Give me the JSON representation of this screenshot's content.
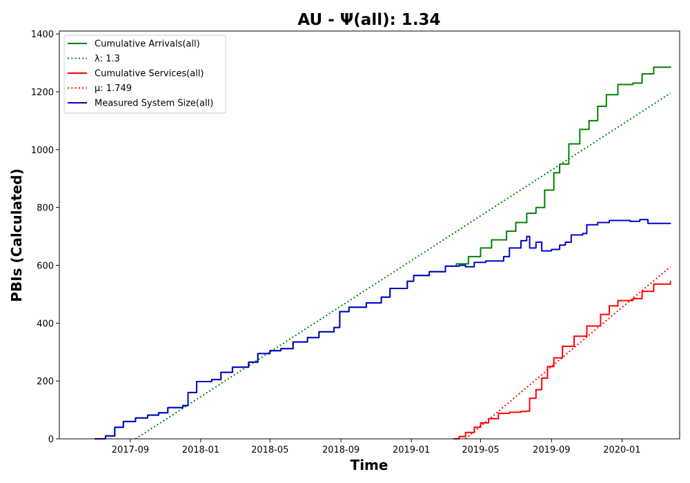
{
  "chart_data": {
    "type": "line",
    "title": "AU -  Ψ(all): 1.34",
    "xlabel": "Time",
    "ylabel": "PBIs (Calculated)",
    "x_type": "date",
    "xlim": [
      "2017-05-01",
      "2020-04-10"
    ],
    "ylim": [
      0,
      1410
    ],
    "x_ticks": [
      "2017-09",
      "2018-01",
      "2018-05",
      "2018-09",
      "2019-01",
      "2019-05",
      "2019-09",
      "2020-01"
    ],
    "y_ticks": [
      0,
      200,
      400,
      600,
      800,
      1000,
      1200,
      1400
    ],
    "grid": false,
    "legend_position": "top-left",
    "series": [
      {
        "name": "Cumulative Arrivals(all)",
        "color": "#008000",
        "style": "solid",
        "points": [
          [
            "2017-07-01",
            0
          ],
          [
            "2017-07-20",
            10
          ],
          [
            "2017-08-05",
            40
          ],
          [
            "2017-08-20",
            60
          ],
          [
            "2017-09-10",
            72
          ],
          [
            "2017-10-01",
            82
          ],
          [
            "2017-10-20",
            90
          ],
          [
            "2017-11-05",
            108
          ],
          [
            "2017-12-01",
            115
          ],
          [
            "2017-12-10",
            160
          ],
          [
            "2017-12-25",
            198
          ],
          [
            "2018-01-20",
            205
          ],
          [
            "2018-02-05",
            230
          ],
          [
            "2018-02-25",
            248
          ],
          [
            "2018-03-25",
            265
          ],
          [
            "2018-04-10",
            295
          ],
          [
            "2018-05-01",
            305
          ],
          [
            "2018-05-20",
            312
          ],
          [
            "2018-06-10",
            335
          ],
          [
            "2018-07-05",
            350
          ],
          [
            "2018-07-25",
            370
          ],
          [
            "2018-08-20",
            385
          ],
          [
            "2018-08-30",
            440
          ],
          [
            "2018-09-15",
            455
          ],
          [
            "2018-10-15",
            470
          ],
          [
            "2018-11-10",
            490
          ],
          [
            "2018-11-25",
            520
          ],
          [
            "2018-12-25",
            545
          ],
          [
            "2019-01-05",
            565
          ],
          [
            "2019-02-01",
            578
          ],
          [
            "2019-03-01",
            597
          ],
          [
            "2019-03-20",
            605
          ],
          [
            "2019-04-10",
            630
          ],
          [
            "2019-05-01",
            660
          ],
          [
            "2019-05-20",
            688
          ],
          [
            "2019-06-15",
            718
          ],
          [
            "2019-07-01",
            748
          ],
          [
            "2019-07-20",
            780
          ],
          [
            "2019-08-05",
            800
          ],
          [
            "2019-08-20",
            860
          ],
          [
            "2019-09-05",
            920
          ],
          [
            "2019-09-15",
            950
          ],
          [
            "2019-10-01",
            1020
          ],
          [
            "2019-10-20",
            1070
          ],
          [
            "2019-11-05",
            1100
          ],
          [
            "2019-11-20",
            1150
          ],
          [
            "2019-12-05",
            1190
          ],
          [
            "2019-12-25",
            1225
          ],
          [
            "2020-01-20",
            1230
          ],
          [
            "2020-02-05",
            1262
          ],
          [
            "2020-02-25",
            1285
          ],
          [
            "2020-03-25",
            1288
          ]
        ]
      },
      {
        "name": "λ: 1.3",
        "color": "#008000",
        "style": "dotted",
        "points": [
          [
            "2017-09-10",
            0
          ],
          [
            "2020-03-25",
            1195
          ]
        ]
      },
      {
        "name": "Cumulative Services(all)",
        "color": "#ff0000",
        "style": "solid",
        "points": [
          [
            "2019-03-15",
            0
          ],
          [
            "2019-03-25",
            8
          ],
          [
            "2019-04-05",
            22
          ],
          [
            "2019-04-20",
            40
          ],
          [
            "2019-05-01",
            55
          ],
          [
            "2019-05-15",
            70
          ],
          [
            "2019-06-01",
            88
          ],
          [
            "2019-06-20",
            92
          ],
          [
            "2019-07-10",
            95
          ],
          [
            "2019-07-20",
            96
          ],
          [
            "2019-07-25",
            140
          ],
          [
            "2019-08-05",
            170
          ],
          [
            "2019-08-15",
            210
          ],
          [
            "2019-08-25",
            250
          ],
          [
            "2019-09-05",
            280
          ],
          [
            "2019-09-20",
            320
          ],
          [
            "2019-10-10",
            355
          ],
          [
            "2019-11-01",
            390
          ],
          [
            "2019-11-25",
            430
          ],
          [
            "2019-12-10",
            460
          ],
          [
            "2019-12-25",
            478
          ],
          [
            "2020-01-20",
            485
          ],
          [
            "2020-02-05",
            510
          ],
          [
            "2020-02-25",
            535
          ],
          [
            "2020-03-25",
            546
          ]
        ]
      },
      {
        "name": "μ: 1.749",
        "color": "#ff0000",
        "style": "dotted",
        "points": [
          [
            "2019-04-05",
            0
          ],
          [
            "2020-03-25",
            595
          ]
        ]
      },
      {
        "name": "Measured System Size(all)",
        "color": "#0000cc",
        "style": "solid",
        "points": [
          [
            "2017-07-01",
            0
          ],
          [
            "2017-07-20",
            10
          ],
          [
            "2017-08-05",
            40
          ],
          [
            "2017-08-20",
            60
          ],
          [
            "2017-09-10",
            72
          ],
          [
            "2017-10-01",
            82
          ],
          [
            "2017-10-20",
            90
          ],
          [
            "2017-11-05",
            108
          ],
          [
            "2017-12-01",
            115
          ],
          [
            "2017-12-10",
            160
          ],
          [
            "2017-12-25",
            198
          ],
          [
            "2018-01-20",
            205
          ],
          [
            "2018-02-05",
            230
          ],
          [
            "2018-02-25",
            248
          ],
          [
            "2018-03-25",
            265
          ],
          [
            "2018-04-10",
            295
          ],
          [
            "2018-05-01",
            305
          ],
          [
            "2018-05-20",
            312
          ],
          [
            "2018-06-10",
            335
          ],
          [
            "2018-07-05",
            350
          ],
          [
            "2018-07-25",
            370
          ],
          [
            "2018-08-20",
            385
          ],
          [
            "2018-08-30",
            440
          ],
          [
            "2018-09-15",
            455
          ],
          [
            "2018-10-15",
            470
          ],
          [
            "2018-11-10",
            490
          ],
          [
            "2018-11-25",
            520
          ],
          [
            "2018-12-25",
            545
          ],
          [
            "2019-01-05",
            565
          ],
          [
            "2019-02-01",
            578
          ],
          [
            "2019-03-01",
            597
          ],
          [
            "2019-03-25",
            600
          ],
          [
            "2019-04-05",
            595
          ],
          [
            "2019-04-20",
            610
          ],
          [
            "2019-05-10",
            615
          ],
          [
            "2019-06-10",
            630
          ],
          [
            "2019-06-20",
            660
          ],
          [
            "2019-07-10",
            685
          ],
          [
            "2019-07-20",
            700
          ],
          [
            "2019-07-25",
            660
          ],
          [
            "2019-08-05",
            680
          ],
          [
            "2019-08-15",
            650
          ],
          [
            "2019-09-01",
            655
          ],
          [
            "2019-09-15",
            670
          ],
          [
            "2019-09-25",
            680
          ],
          [
            "2019-10-05",
            705
          ],
          [
            "2019-10-25",
            710
          ],
          [
            "2019-11-01",
            740
          ],
          [
            "2019-11-20",
            748
          ],
          [
            "2019-12-10",
            755
          ],
          [
            "2020-01-15",
            752
          ],
          [
            "2020-02-01",
            758
          ],
          [
            "2020-02-15",
            745
          ],
          [
            "2020-03-25",
            743
          ]
        ]
      }
    ]
  }
}
